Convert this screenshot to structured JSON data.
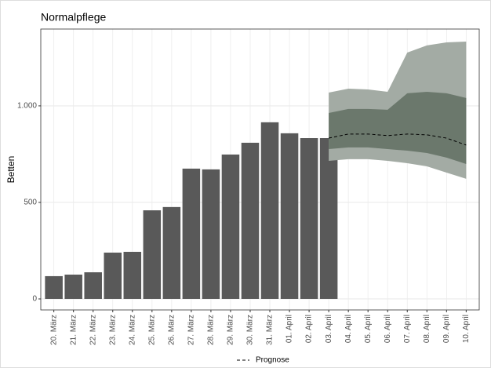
{
  "chart_data": {
    "type": "bar",
    "title": "Normalpflege",
    "ylabel": "Betten",
    "categories": [
      "20. März",
      "21. März",
      "22. März",
      "23. März",
      "24. März",
      "25. März",
      "26. März",
      "27. März",
      "28. März",
      "29. März",
      "30. März",
      "31. März",
      "01. April",
      "02. April",
      "03. April",
      "04. April",
      "05. April",
      "06. April",
      "07. April",
      "08. April",
      "09. April",
      "10. April"
    ],
    "values": [
      118,
      126,
      138,
      240,
      244,
      459,
      476,
      675,
      671,
      748,
      809,
      915,
      858,
      833,
      833,
      null,
      null,
      null,
      null,
      null,
      null,
      null
    ],
    "color": "#595959",
    "bands": [
      {
        "color": "#a3aba4",
        "upper": [
          null,
          null,
          null,
          null,
          null,
          null,
          null,
          null,
          null,
          null,
          null,
          null,
          null,
          null,
          1069,
          1089,
          1085,
          1073,
          1276,
          1313,
          1329,
          1333
        ],
        "lower": [
          null,
          null,
          null,
          null,
          null,
          null,
          null,
          null,
          null,
          null,
          null,
          null,
          null,
          null,
          715,
          724,
          724,
          715,
          703,
          687,
          654,
          622
        ]
      },
      {
        "color": "#6b786c",
        "upper": [
          null,
          null,
          null,
          null,
          null,
          null,
          null,
          null,
          null,
          null,
          null,
          null,
          null,
          null,
          963,
          984,
          984,
          980,
          1065,
          1073,
          1065,
          1041
        ],
        "lower": [
          null,
          null,
          null,
          null,
          null,
          null,
          null,
          null,
          null,
          null,
          null,
          null,
          null,
          null,
          776,
          785,
          785,
          776,
          768,
          756,
          732,
          699
        ]
      }
    ],
    "forecast": {
      "name": "Prognose",
      "color": "#000000",
      "values": [
        null,
        null,
        null,
        null,
        null,
        null,
        null,
        null,
        null,
        null,
        null,
        null,
        null,
        null,
        833,
        854,
        854,
        846,
        854,
        850,
        833,
        797
      ]
    },
    "ylim": [
      -57,
      1398
    ],
    "yticks": [
      0,
      500,
      {
        "value": 1000,
        "label": "1.000"
      }
    ],
    "grid": true
  }
}
